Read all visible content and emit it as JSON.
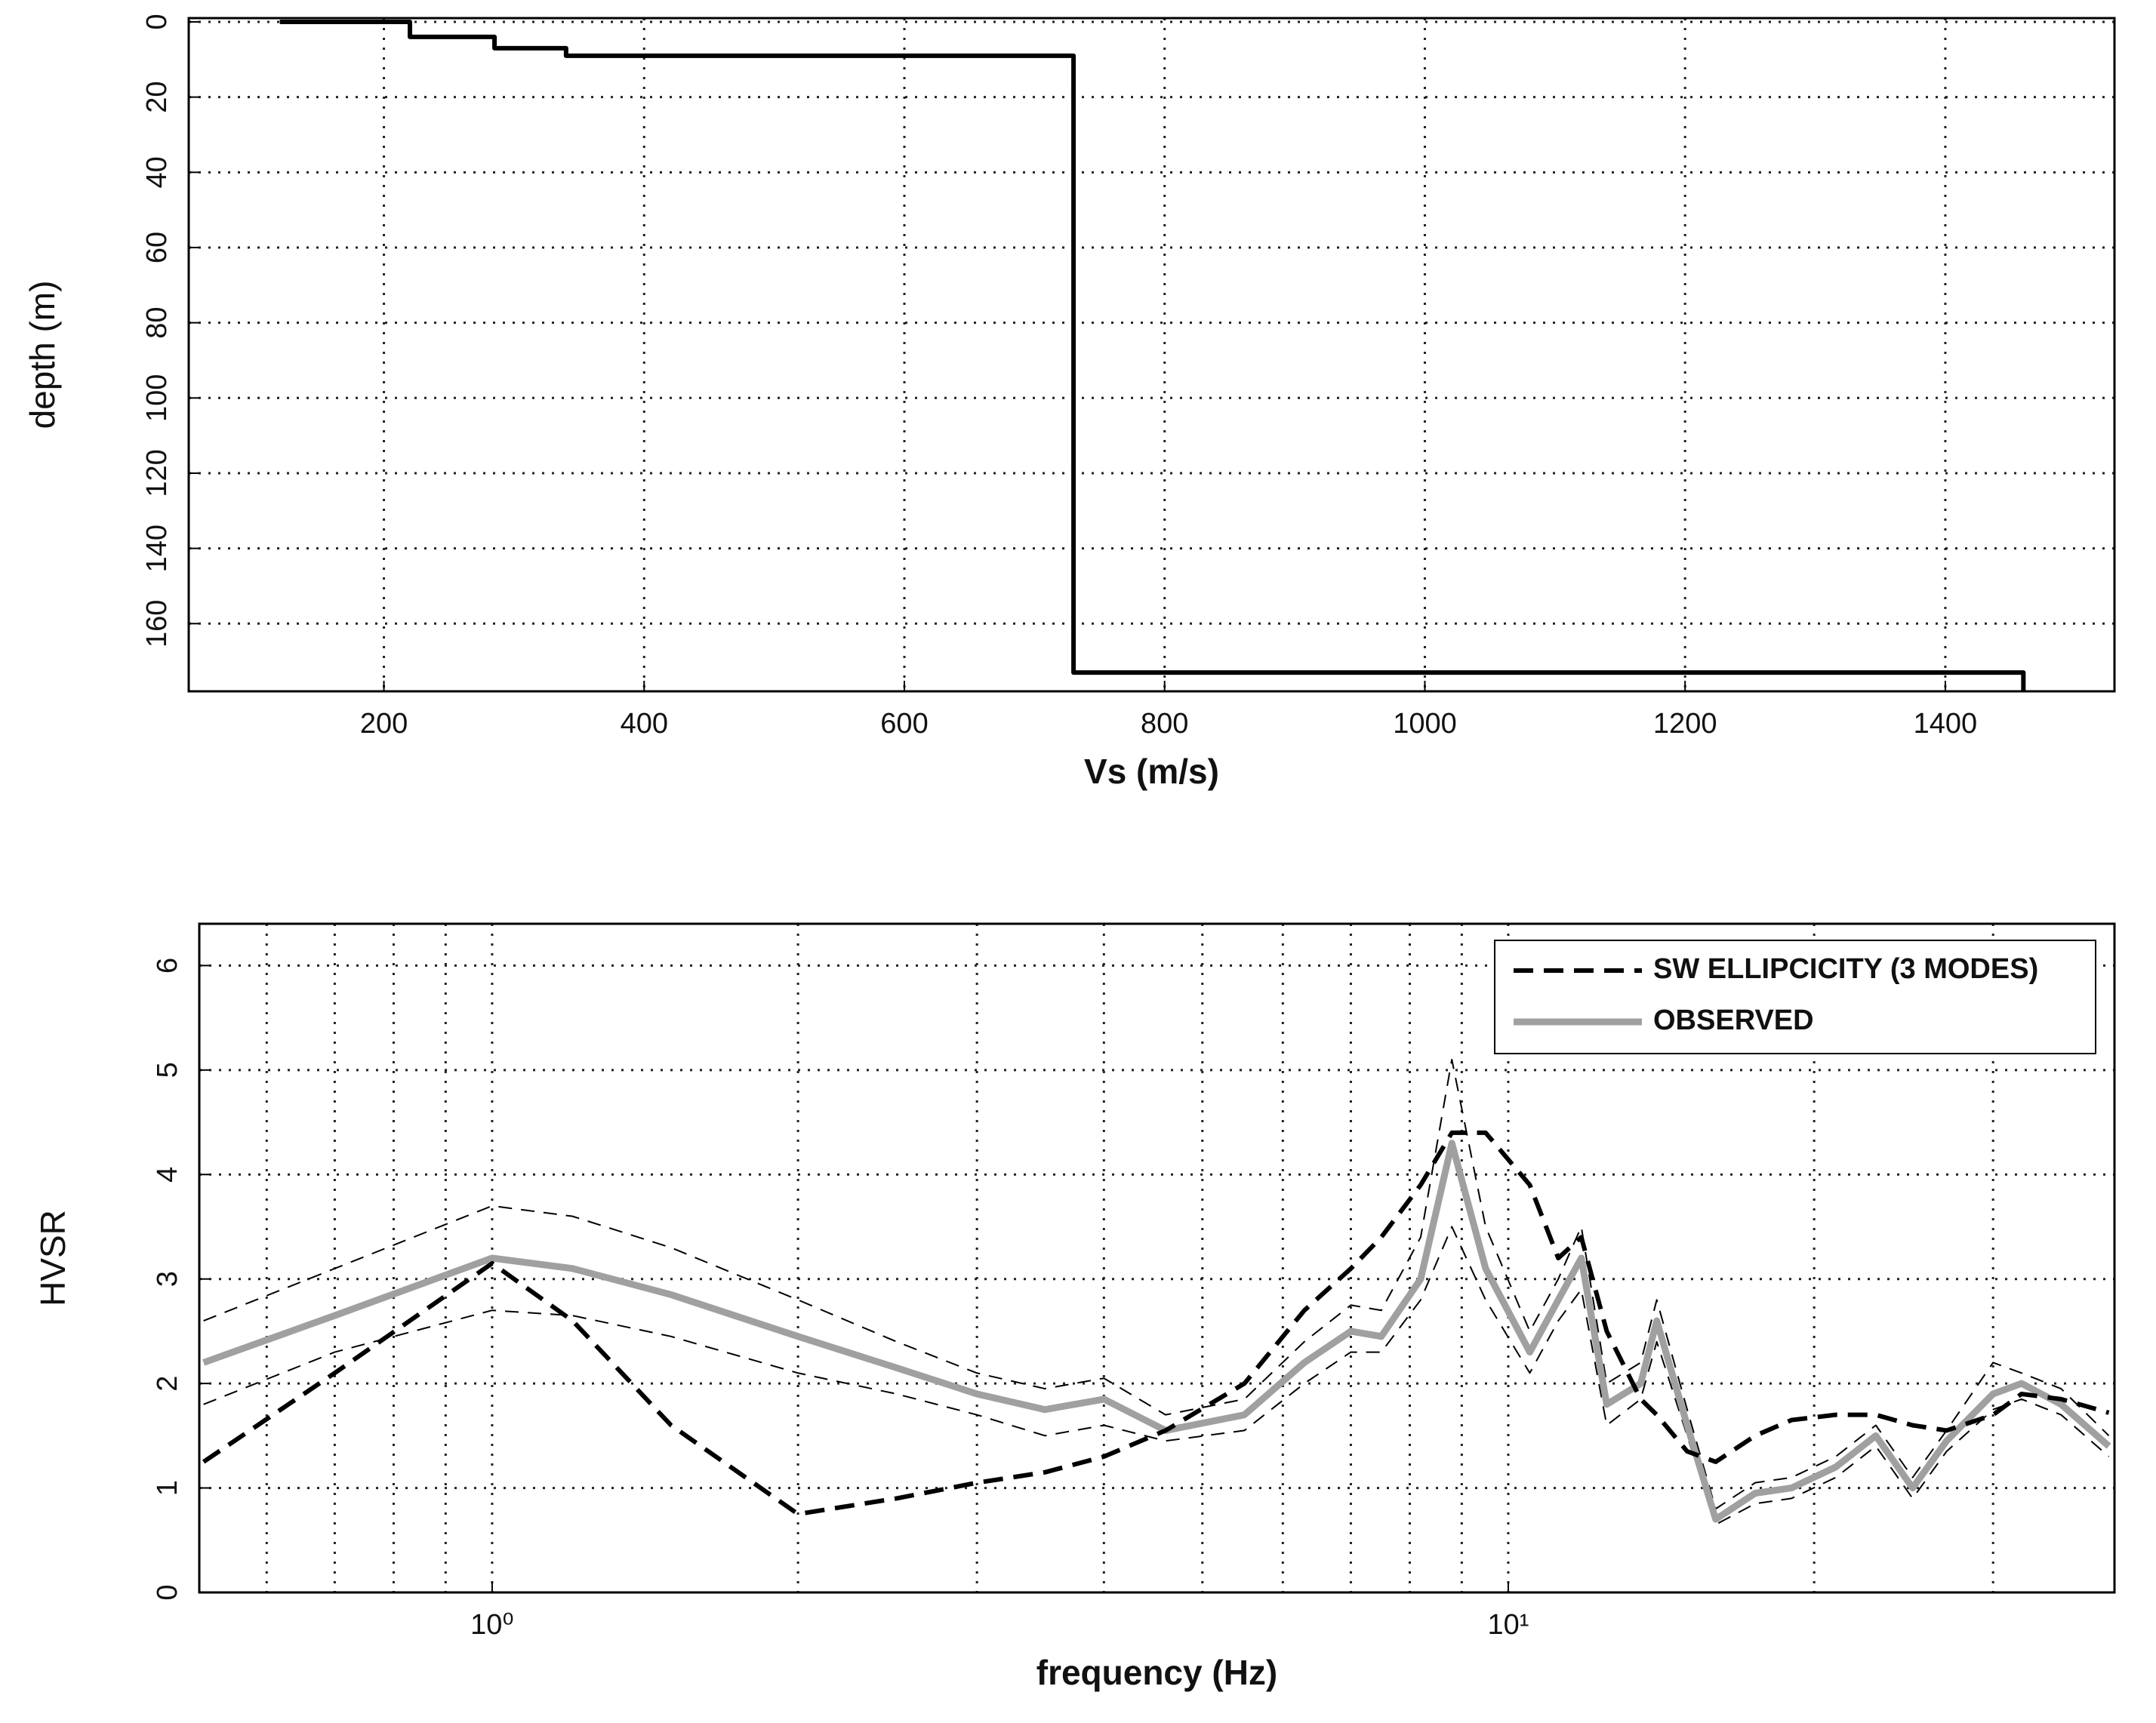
{
  "chart_data": [
    {
      "type": "line",
      "xlabel": "Vs (m/s)",
      "ylabel": "depth (m)",
      "x": [
        120,
        220,
        220,
        285,
        285,
        340,
        340,
        730,
        730,
        1460,
        1460
      ],
      "series": [
        {
          "color": "#000000",
          "linestyle": "solid",
          "linewidth": 6,
          "values": [
            0,
            0,
            4,
            4,
            7,
            7,
            9,
            9,
            173,
            173,
            178
          ]
        }
      ],
      "xlim": [
        50,
        1530
      ],
      "xticks": [
        200,
        400,
        600,
        800,
        1000,
        1200,
        1400
      ],
      "ylim": [
        -1,
        178
      ],
      "yticks": [
        0,
        20,
        40,
        60,
        80,
        100,
        120,
        140,
        160
      ],
      "y_inverted": true,
      "grid": true
    },
    {
      "type": "line",
      "xlabel": "frequency (Hz)",
      "ylabel": "HVSR",
      "xscale": "log",
      "legend": "upper right",
      "x": [
        0.52,
        0.7,
        1.0,
        1.2,
        1.5,
        2.0,
        2.5,
        3.0,
        3.5,
        4.0,
        4.6,
        5.5,
        6.3,
        7.0,
        7.5,
        8.2,
        8.8,
        9.5,
        10.5,
        11.2,
        11.8,
        12.5,
        13.5,
        14.0,
        15,
        16,
        17.5,
        19,
        21,
        23,
        25,
        27,
        30,
        32,
        35,
        39
      ],
      "series": [
        {
          "color": "#000000",
          "linestyle": "thin-dashed",
          "linewidth": 2,
          "values": [
            2.6,
            3.1,
            3.7,
            3.6,
            3.3,
            2.8,
            2.4,
            2.1,
            1.95,
            2.05,
            1.7,
            1.85,
            2.4,
            2.75,
            2.7,
            3.4,
            5.1,
            3.5,
            2.5,
            3.0,
            3.5,
            2.0,
            2.2,
            2.8,
            1.75,
            0.8,
            1.05,
            1.1,
            1.3,
            1.6,
            1.1,
            1.55,
            2.2,
            2.1,
            1.95,
            1.5
          ]
        },
        {
          "color": "#000000",
          "linestyle": "thin-dashed",
          "linewidth": 2,
          "values": [
            1.8,
            2.3,
            2.7,
            2.65,
            2.45,
            2.1,
            1.9,
            1.7,
            1.5,
            1.6,
            1.45,
            1.55,
            2.0,
            2.3,
            2.3,
            2.8,
            3.5,
            2.8,
            2.1,
            2.6,
            2.9,
            1.6,
            1.85,
            2.4,
            1.5,
            0.65,
            0.85,
            0.9,
            1.1,
            1.4,
            0.9,
            1.35,
            1.75,
            1.85,
            1.7,
            1.3
          ]
        },
        {
          "name": "OBSERVED",
          "color": "#a0a0a0",
          "linestyle": "solid",
          "linewidth": 9,
          "values": [
            2.2,
            2.65,
            3.2,
            3.1,
            2.85,
            2.45,
            2.15,
            1.9,
            1.75,
            1.85,
            1.55,
            1.7,
            2.2,
            2.5,
            2.45,
            3.0,
            4.3,
            3.1,
            2.3,
            2.8,
            3.2,
            1.8,
            2.0,
            2.6,
            1.6,
            0.7,
            0.95,
            1.0,
            1.2,
            1.5,
            1.0,
            1.45,
            1.9,
            2.0,
            1.8,
            1.4
          ]
        },
        {
          "name": "SW ELLIPCICITY (3 MODES)",
          "color": "#000000",
          "linestyle": "dashed",
          "linewidth": 6,
          "values": [
            1.25,
            2.1,
            3.15,
            2.6,
            1.6,
            0.75,
            0.9,
            1.05,
            1.15,
            1.3,
            1.55,
            2.0,
            2.7,
            3.1,
            3.4,
            3.9,
            4.4,
            4.4,
            3.9,
            3.2,
            3.4,
            2.5,
            1.85,
            1.7,
            1.35,
            1.25,
            1.5,
            1.65,
            1.7,
            1.7,
            1.6,
            1.55,
            1.7,
            1.9,
            1.85,
            1.72
          ]
        }
      ],
      "xlim": [
        0.515,
        39.5
      ],
      "xticks": [
        {
          "value": 1,
          "label": "10⁰"
        },
        {
          "value": 10,
          "label": "10¹"
        }
      ],
      "xminorticks": [
        0.6,
        0.7,
        0.8,
        0.9,
        2,
        3,
        4,
        5,
        6,
        7,
        8,
        9,
        20,
        30
      ],
      "ylim": [
        0,
        6.4
      ],
      "yticks": [
        0,
        1,
        2,
        3,
        4,
        5,
        6
      ],
      "grid": true
    }
  ]
}
